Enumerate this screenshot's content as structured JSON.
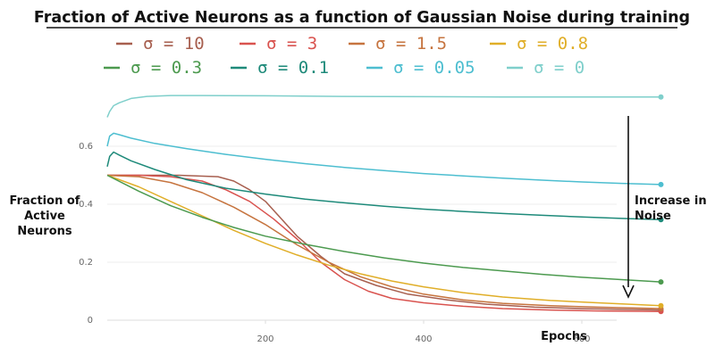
{
  "chart_data": {
    "type": "line",
    "title": "Fraction of Active Neurons as a function of Gaussian Noise during training",
    "xlabel": "Epochs",
    "ylabel": "Fraction of Active Neurons",
    "xlim": [
      0,
      800
    ],
    "ylim": [
      0,
      0.8
    ],
    "x_ticks": [
      200,
      400,
      600
    ],
    "y_ticks": [
      0,
      0.2,
      0.4,
      0.6
    ],
    "x_tick_labels": [
      "200",
      "400",
      "600"
    ],
    "y_tick_labels": [
      "0",
      "0.2",
      "0.4",
      "0.6"
    ],
    "grid": "horizontal",
    "legend_position": "top",
    "annotation": "Increase in Noise",
    "series": [
      {
        "name": "σ = 10",
        "color": "#a75f4f",
        "x": [
          0,
          40,
          90,
          140,
          160,
          180,
          200,
          220,
          240,
          270,
          300,
          340,
          380,
          430,
          480,
          540,
          600,
          660,
          700
        ],
        "y": [
          0.5,
          0.5,
          0.5,
          0.495,
          0.48,
          0.45,
          0.41,
          0.35,
          0.29,
          0.22,
          0.16,
          0.12,
          0.09,
          0.07,
          0.055,
          0.045,
          0.04,
          0.037,
          0.035
        ]
      },
      {
        "name": "σ = 3",
        "color": "#d9534f",
        "x": [
          0,
          40,
          80,
          120,
          150,
          180,
          210,
          240,
          270,
          300,
          330,
          360,
          400,
          450,
          500,
          560,
          620,
          700
        ],
        "y": [
          0.5,
          0.5,
          0.495,
          0.48,
          0.45,
          0.41,
          0.35,
          0.28,
          0.2,
          0.14,
          0.1,
          0.075,
          0.06,
          0.048,
          0.04,
          0.035,
          0.032,
          0.03
        ]
      },
      {
        "name": "σ = 1.5",
        "color": "#c6743f",
        "x": [
          0,
          40,
          80,
          120,
          160,
          200,
          240,
          280,
          320,
          360,
          400,
          450,
          500,
          560,
          620,
          700
        ],
        "y": [
          0.5,
          0.495,
          0.475,
          0.44,
          0.39,
          0.33,
          0.26,
          0.2,
          0.15,
          0.115,
          0.09,
          0.07,
          0.058,
          0.05,
          0.045,
          0.04
        ]
      },
      {
        "name": "σ = 0.8",
        "color": "#e0ae28",
        "x": [
          0,
          40,
          80,
          120,
          160,
          200,
          240,
          280,
          320,
          360,
          400,
          450,
          500,
          560,
          620,
          700
        ],
        "y": [
          0.5,
          0.46,
          0.41,
          0.36,
          0.31,
          0.265,
          0.225,
          0.19,
          0.16,
          0.135,
          0.115,
          0.095,
          0.08,
          0.068,
          0.06,
          0.05
        ]
      },
      {
        "name": "σ = 0.3",
        "color": "#4c9a4f",
        "x": [
          0,
          40,
          80,
          120,
          160,
          200,
          250,
          300,
          350,
          400,
          450,
          500,
          550,
          600,
          650,
          700
        ],
        "y": [
          0.5,
          0.445,
          0.395,
          0.355,
          0.32,
          0.29,
          0.262,
          0.237,
          0.215,
          0.197,
          0.182,
          0.17,
          0.158,
          0.148,
          0.14,
          0.132
        ]
      },
      {
        "name": "σ = 0.1",
        "color": "#1e8a7a",
        "x": [
          0,
          3,
          8,
          15,
          30,
          60,
          100,
          150,
          200,
          250,
          300,
          350,
          400,
          450,
          500,
          550,
          600,
          650,
          700
        ],
        "y": [
          0.53,
          0.565,
          0.58,
          0.57,
          0.55,
          0.52,
          0.485,
          0.455,
          0.435,
          0.418,
          0.405,
          0.393,
          0.383,
          0.375,
          0.368,
          0.362,
          0.356,
          0.351,
          0.347
        ]
      },
      {
        "name": "σ = 0.05",
        "color": "#4dbed0",
        "x": [
          0,
          3,
          8,
          15,
          30,
          60,
          100,
          150,
          200,
          250,
          300,
          350,
          400,
          450,
          500,
          550,
          600,
          650,
          700
        ],
        "y": [
          0.6,
          0.635,
          0.645,
          0.64,
          0.628,
          0.61,
          0.592,
          0.572,
          0.555,
          0.54,
          0.527,
          0.516,
          0.506,
          0.498,
          0.49,
          0.483,
          0.477,
          0.472,
          0.468
        ]
      },
      {
        "name": "σ = 0",
        "color": "#7fcfcb",
        "x": [
          0,
          3,
          8,
          15,
          30,
          50,
          80,
          120,
          200,
          300,
          400,
          500,
          600,
          700
        ],
        "y": [
          0.7,
          0.72,
          0.74,
          0.75,
          0.765,
          0.772,
          0.775,
          0.775,
          0.774,
          0.772,
          0.771,
          0.77,
          0.77,
          0.77
        ]
      }
    ]
  }
}
